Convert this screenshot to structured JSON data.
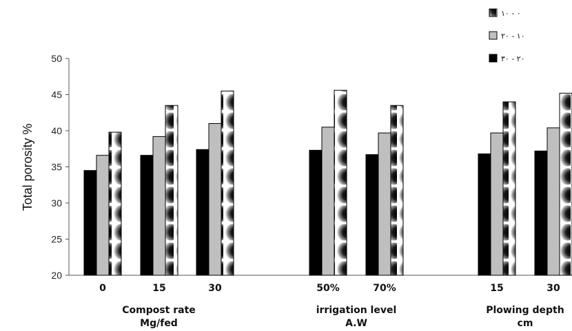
{
  "chart_data": {
    "type": "bar",
    "title": "",
    "ylabel": "Total porosity %",
    "ylim": [
      20,
      50
    ],
    "yticks": [
      20,
      25,
      30,
      35,
      40,
      45,
      50
    ],
    "grid": false,
    "legend_position": "top-right",
    "groups": [
      {
        "label_lines": [
          "Compost rate",
          "Mg/fed"
        ],
        "categories": [
          "0",
          "15",
          "30"
        ]
      },
      {
        "label_lines": [
          "irrigation level",
          "A.W"
        ],
        "categories": [
          "50%",
          "70%"
        ]
      },
      {
        "label_lines": [
          "Plowing depth",
          "cm"
        ],
        "categories": [
          "15",
          "30"
        ]
      }
    ],
    "categories": [
      "0",
      "15",
      "30",
      "50%",
      "70%",
      "15",
      "30"
    ],
    "series": [
      {
        "name": "٢٠ - ٣٠",
        "color": "#000000",
        "pattern": "solid-black",
        "values": [
          34.5,
          36.6,
          37.4,
          37.3,
          36.7,
          36.8,
          37.2
        ]
      },
      {
        "name": "١٠ - ٢٠",
        "color": "#bfbfbf",
        "pattern": "solid-gray",
        "values": [
          36.6,
          39.2,
          41.0,
          40.5,
          39.7,
          39.7,
          40.4
        ]
      },
      {
        "name": "٠ - ١٠",
        "color": "#000000",
        "pattern": "crescent",
        "values": [
          39.8,
          43.5,
          45.5,
          45.6,
          43.5,
          44.0,
          45.2
        ]
      }
    ],
    "legend_order": [
      2,
      1,
      0
    ]
  }
}
